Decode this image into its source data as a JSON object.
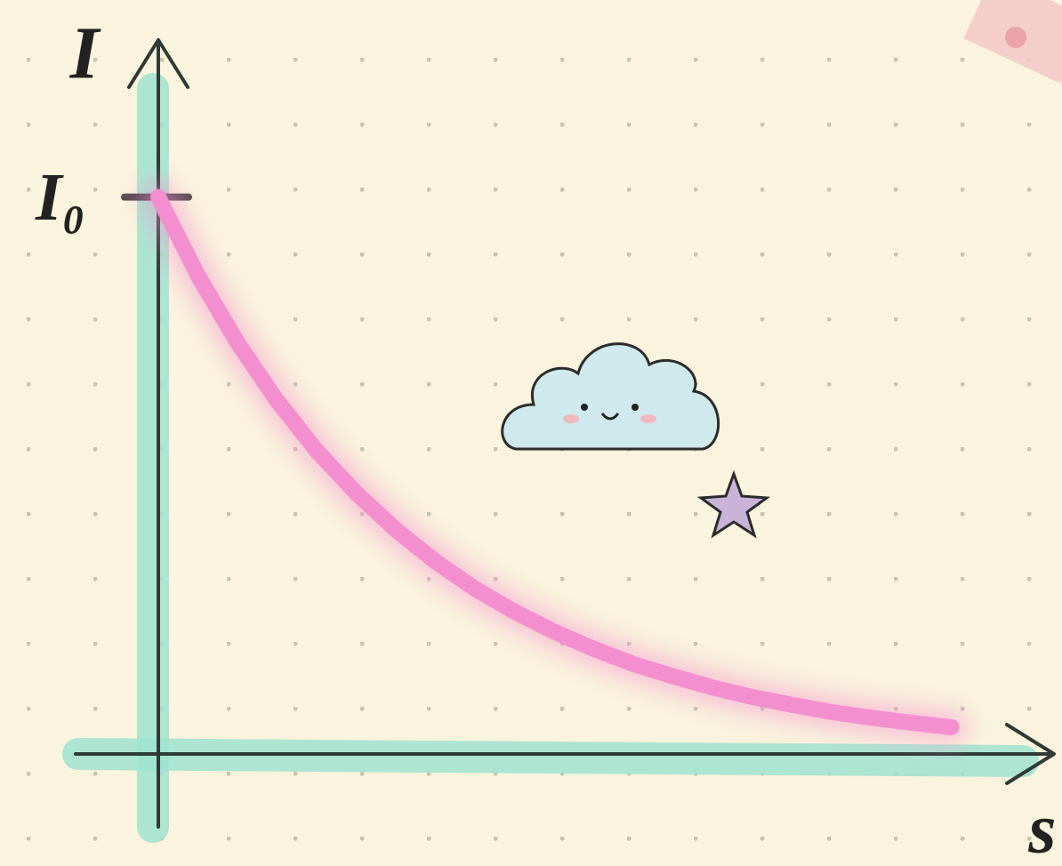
{
  "chart_data": {
    "type": "line",
    "x_label": "s",
    "y_label": "I",
    "x": [
      0,
      0.5,
      1,
      1.5,
      2,
      2.5,
      3,
      3.5,
      4,
      4.5,
      5,
      5.5,
      6,
      6.5,
      7,
      7.5,
      8,
      8.5,
      9,
      9.5,
      10
    ],
    "series": [
      {
        "color": "#f48fcf",
        "values": [
          1,
          0.859,
          0.738,
          0.634,
          0.544,
          0.468,
          0.402,
          0.345,
          0.296,
          0.255,
          0.219,
          0.188,
          0.161,
          0.139,
          0.119,
          0.102,
          0.088,
          0.075,
          0.065,
          0.056,
          0.048
        ]
      }
    ],
    "xlim": [
      0,
      11.35
    ],
    "ylim": [
      0,
      1.29
    ],
    "yticks": [
      {
        "value": 1,
        "label": "I₀"
      }
    ],
    "axis_highlight_color": "#9fe3cf"
  }
}
